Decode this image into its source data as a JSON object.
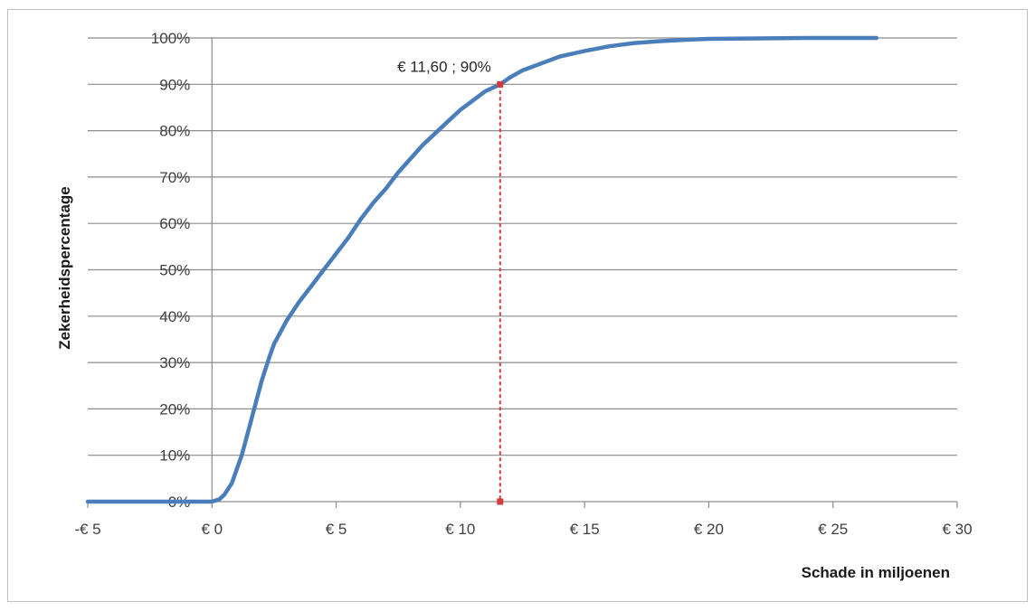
{
  "chart_data": {
    "type": "line",
    "title": "",
    "xlabel": "Schade in miljoenen",
    "ylabel": "Zekerheidspercentage",
    "xlim": [
      -5,
      30
    ],
    "ylim": [
      0,
      100
    ],
    "x_ticks": [
      -5,
      0,
      5,
      10,
      15,
      20,
      25,
      30
    ],
    "x_tick_labels": [
      "-€ 5",
      "€ 0",
      "€ 5",
      "€ 10",
      "€ 15",
      "€ 20",
      "€ 25",
      "€ 30"
    ],
    "y_ticks": [
      0,
      10,
      20,
      30,
      40,
      50,
      60,
      70,
      80,
      90,
      100
    ],
    "y_tick_labels": [
      "0%",
      "10%",
      "20%",
      "30%",
      "40%",
      "50%",
      "60%",
      "70%",
      "80%",
      "90%",
      "100%"
    ],
    "grid": true,
    "legend": "none",
    "series": [
      {
        "color": "#4a7ebb",
        "x": [
          -5,
          0,
          0.3,
          0.5,
          0.8,
          1.0,
          1.2,
          1.5,
          1.8,
          2.0,
          2.3,
          2.5,
          2.8,
          3.0,
          3.5,
          4.0,
          4.5,
          5.0,
          5.5,
          6.0,
          6.5,
          7.0,
          7.5,
          8.0,
          8.5,
          9.0,
          9.5,
          10.0,
          10.5,
          11.0,
          11.6,
          12.0,
          12.5,
          13.0,
          13.5,
          14.0,
          15.0,
          16.0,
          17.0,
          18.0,
          19.0,
          20.0,
          22.0,
          24.0,
          26.75
        ],
        "y": [
          0,
          0,
          0.5,
          1.5,
          4,
          7,
          10,
          16,
          22,
          26,
          31,
          34,
          37,
          39,
          43,
          46.5,
          50,
          53.5,
          57,
          61,
          64.5,
          67.5,
          71,
          74,
          77,
          79.5,
          82,
          84.5,
          86.5,
          88.5,
          90,
          91.5,
          93,
          94,
          95,
          96,
          97.2,
          98.2,
          98.9,
          99.3,
          99.6,
          99.8,
          99.9,
          100,
          100
        ]
      }
    ],
    "marker": {
      "x": 11.6,
      "y": 90,
      "label": "€ 11,60 ; 90%",
      "color": "#d23c3c"
    }
  }
}
